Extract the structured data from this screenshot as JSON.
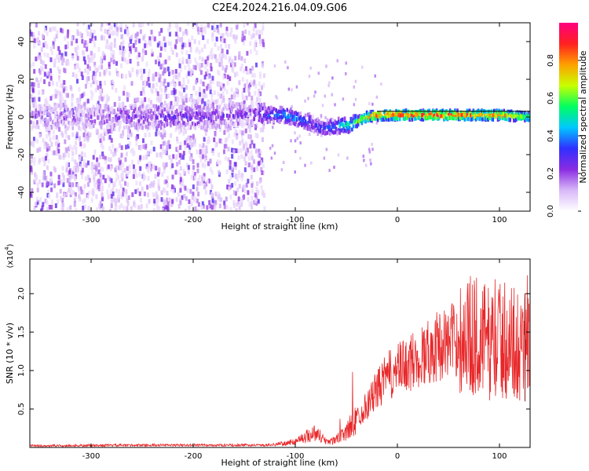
{
  "figure_title": "C2E4.2024.216.04.09.G06",
  "colors": {
    "accent_red": "#e8282a",
    "axis": "#000000",
    "background": "#ffffff"
  },
  "chart_data": [
    {
      "type": "heatmap",
      "xlabel": "Height of straight line (km)",
      "ylabel": "Frequency (Hz)",
      "xlim": [
        -360,
        130
      ],
      "ylim": [
        -50,
        50
      ],
      "xticks": [
        -300,
        -200,
        -100,
        0,
        100
      ],
      "yticks": [
        -40,
        -20,
        0,
        20,
        40
      ],
      "colorbar": {
        "label": "Normalized spectral amplitude",
        "range": [
          0,
          1
        ],
        "ticks": [
          "0.0",
          "0.2",
          "0.4",
          "0.6",
          "0.8"
        ],
        "colors": [
          "#ffffff",
          "#d8b8f8",
          "#8a2be2",
          "#3030ff",
          "#00c8ff",
          "#00ff60",
          "#c8ff00",
          "#ffa000",
          "#ff2020",
          "#ff0080"
        ]
      },
      "ridge": [
        {
          "x": -360,
          "freq": 0,
          "amp": 0.15
        },
        {
          "x": -300,
          "freq": 0,
          "amp": 0.15
        },
        {
          "x": -260,
          "freq": 0,
          "amp": 0.22
        },
        {
          "x": -200,
          "freq": 0,
          "amp": 0.25
        },
        {
          "x": -140,
          "freq": 1,
          "amp": 0.2
        },
        {
          "x": -130,
          "freq": 1,
          "amp": 0.3
        },
        {
          "x": -110,
          "freq": 1,
          "amp": 0.45
        },
        {
          "x": -90,
          "freq": -2,
          "amp": 0.35
        },
        {
          "x": -75,
          "freq": -6,
          "amp": 0.3
        },
        {
          "x": -60,
          "freq": -5,
          "amp": 0.4
        },
        {
          "x": -45,
          "freq": -4,
          "amp": 0.55
        },
        {
          "x": -30,
          "freq": 0,
          "amp": 0.8
        },
        {
          "x": -15,
          "freq": 1,
          "amp": 0.9
        },
        {
          "x": 0,
          "freq": 1,
          "amp": 0.9
        },
        {
          "x": 50,
          "freq": 1,
          "amp": 0.9
        },
        {
          "x": 100,
          "freq": 1,
          "amp": 0.85
        },
        {
          "x": 130,
          "freq": 0,
          "amp": 0.6
        }
      ],
      "noise_region_x": [
        -360,
        -130
      ]
    },
    {
      "type": "line",
      "xlabel": "Height of straight line (km)",
      "ylabel": "SNR (10 * v/v)",
      "y_multiplier": "(x10",
      "y_exponent": "4",
      "xlim": [
        -360,
        130
      ],
      "ylim": [
        0,
        2.45
      ],
      "xticks": [
        -300,
        -200,
        -100,
        0,
        100
      ],
      "yticks": [
        "0.5",
        "1.0",
        "1.5",
        "2.0"
      ],
      "series": [
        {
          "color": "#e8282a",
          "envelope_x": [
            -360,
            -250,
            -130,
            -110,
            -100,
            -90,
            -80,
            -70,
            -60,
            -50,
            -40,
            -30,
            -20,
            -10,
            0,
            10,
            20,
            30,
            40,
            50,
            60,
            70,
            80,
            90,
            100,
            110,
            120,
            130
          ],
          "envelope_y": [
            0.02,
            0.03,
            0.03,
            0.05,
            0.08,
            0.14,
            0.2,
            0.08,
            0.1,
            0.2,
            0.38,
            0.55,
            0.75,
            0.92,
            1.0,
            1.08,
            1.15,
            1.25,
            1.32,
            1.38,
            1.42,
            1.45,
            1.45,
            1.35,
            1.4,
            1.38,
            1.35,
            1.5
          ]
        }
      ]
    }
  ]
}
